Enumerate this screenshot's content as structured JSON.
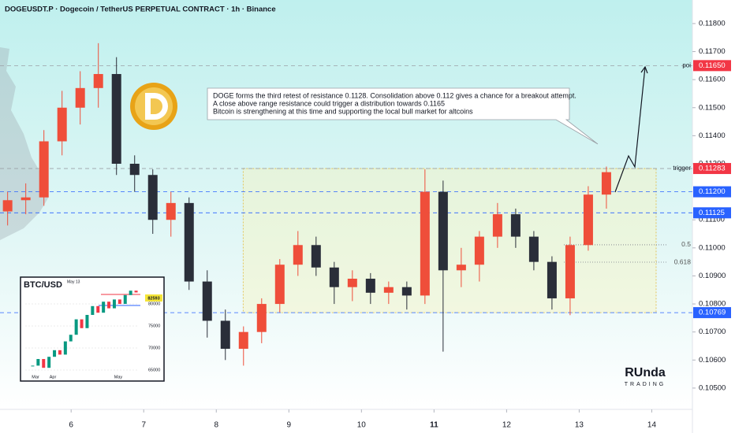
{
  "chart_data": {
    "type": "candlestick",
    "title": "DOGEUSDT.P · Dogecoin / TetherUS PERPETUAL CONTRACT · 1h · Binance",
    "x": [
      5.0,
      5.25,
      5.5,
      5.75,
      6.0,
      6.25,
      6.5,
      6.75,
      7.0,
      7.25,
      7.5,
      7.75,
      8.0,
      8.25,
      8.5,
      8.75,
      9.0,
      9.25,
      9.5,
      9.75,
      10.0,
      10.25,
      10.5,
      10.75,
      11.0,
      11.25,
      11.5,
      11.75,
      12.0,
      12.25,
      12.5,
      12.75,
      13.0,
      13.25
    ],
    "open": [
      0.1113,
      0.1117,
      0.1118,
      0.1138,
      0.115,
      0.1157,
      0.1162,
      0.113,
      0.1126,
      0.111,
      0.1116,
      0.1088,
      0.1074,
      0.1064,
      0.107,
      0.108,
      0.1094,
      0.1101,
      0.1093,
      0.1086,
      0.1089,
      0.1084,
      0.1086,
      0.1083,
      0.112,
      0.1092,
      0.1094,
      0.1104,
      0.1112,
      0.1104,
      0.1095,
      0.1082,
      0.1101,
      0.1119
    ],
    "high": [
      0.112,
      0.1123,
      0.1142,
      0.1156,
      0.1163,
      0.1173,
      0.1168,
      0.1133,
      0.1128,
      0.112,
      0.1118,
      0.1092,
      0.1078,
      0.1072,
      0.1082,
      0.1096,
      0.1106,
      0.1104,
      0.1095,
      0.1092,
      0.1091,
      0.1088,
      0.1088,
      0.1128,
      0.1124,
      0.11,
      0.1106,
      0.1116,
      0.1114,
      0.1106,
      0.1097,
      0.1104,
      0.1122,
      0.1129
    ],
    "low": [
      0.1108,
      0.1112,
      0.1115,
      0.1133,
      0.1144,
      0.115,
      0.1126,
      0.112,
      0.1105,
      0.1104,
      0.1085,
      0.1068,
      0.106,
      0.1058,
      0.1066,
      0.1077,
      0.109,
      0.109,
      0.108,
      0.1081,
      0.108,
      0.108,
      0.1078,
      0.108,
      0.1063,
      0.1086,
      0.1088,
      0.11,
      0.11,
      0.1092,
      0.1078,
      0.1076,
      0.1099,
      0.1114
    ],
    "close": [
      0.1117,
      0.1118,
      0.1138,
      0.115,
      0.1157,
      0.1162,
      0.113,
      0.1126,
      0.111,
      0.1116,
      0.1088,
      0.1074,
      0.1064,
      0.107,
      0.108,
      0.1094,
      0.1101,
      0.1093,
      0.1086,
      0.1089,
      0.1084,
      0.1086,
      0.1083,
      0.112,
      0.1092,
      0.1094,
      0.1104,
      0.1112,
      0.1104,
      0.1095,
      0.1082,
      0.1101,
      0.1119,
      0.1127
    ],
    "up_color": "#ef4e3a",
    "down_color": "#2a2e39",
    "xlim": [
      5.02,
      14.56
    ],
    "xticks": [
      6,
      7,
      8,
      9,
      10,
      11,
      12,
      13,
      14
    ],
    "ylim": [
      0.10438,
      0.11884
    ],
    "yticks": [
      {
        "value": 0.118,
        "label": "0.11800"
      },
      {
        "value": 0.117,
        "label": "0.11700"
      },
      {
        "value": 0.116,
        "label": "0.11600"
      },
      {
        "value": 0.115,
        "label": "0.11500"
      },
      {
        "value": 0.114,
        "label": "0.11400"
      },
      {
        "value": 0.113,
        "label": "0.11300"
      },
      {
        "value": 0.111,
        "label": "0.11100"
      },
      {
        "value": 0.11,
        "label": "0.11000"
      },
      {
        "value": 0.109,
        "label": "0.10900"
      },
      {
        "value": 0.108,
        "label": "0.10800"
      },
      {
        "value": 0.107,
        "label": "0.10700"
      },
      {
        "value": 0.106,
        "label": "0.10600"
      },
      {
        "value": 0.105,
        "label": "0.10500"
      }
    ],
    "levels": [
      {
        "value": 0.1165,
        "label": "0.11650",
        "tag": "poi",
        "color": "#f23645"
      },
      {
        "value": 0.11283,
        "label": "0.11283",
        "tag": "trigger",
        "color": "#f23645"
      },
      {
        "value": 0.112,
        "label": "0.11200",
        "color": "#2962ff"
      },
      {
        "value": 0.11125,
        "label": "0.11125",
        "color": "#2962ff"
      },
      {
        "value": 0.10769,
        "label": "0.10769",
        "color": "#2962ff"
      }
    ],
    "fib": [
      {
        "value": 0.11011,
        "label": "0.5"
      },
      {
        "value": 0.10949,
        "label": "0.618"
      }
    ],
    "zone": {
      "top": 0.11283,
      "bottom": 0.10769,
      "x_start": 8.37,
      "x_end": 14.06
    },
    "annotation": [
      "DOGE forms the third retest of resistance 0.1128. Consolidation above 0.112 gives a chance for a breakout attempt.",
      "A close above range resistance could trigger a distribution towards 0.1165",
      "Bitcoin is strengthening at this time and supporting the local bull market for altcoins"
    ],
    "watermark": {
      "line1": "RUnda",
      "line2": "TRADING"
    },
    "inset": {
      "title": "BTC/USD",
      "date_label": "May 13",
      "price_label": "82593",
      "closes": [
        66000,
        67500,
        65500,
        68000,
        69500,
        68500,
        71500,
        73000,
        76500,
        74500,
        77500,
        79500,
        78000,
        80500,
        79000,
        81000,
        80000,
        82000,
        83000,
        82600
      ],
      "ylim": [
        62860,
        85000
      ],
      "yticks": [
        80000,
        75000,
        70000,
        65000
      ],
      "xlabels": [
        "Mar",
        "Apr",
        "May"
      ]
    }
  }
}
